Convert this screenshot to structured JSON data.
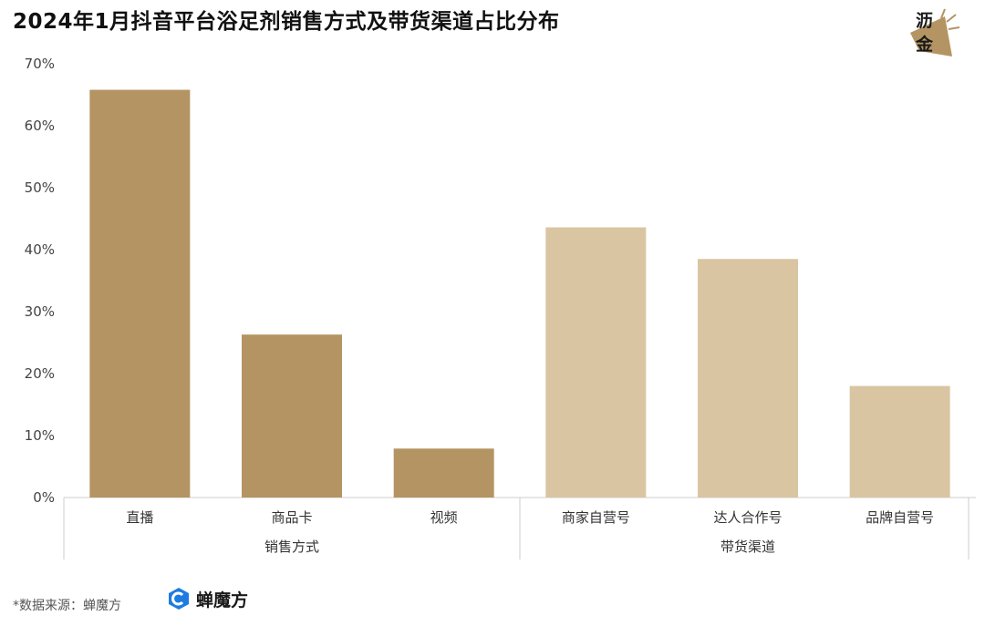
{
  "title": "2024年1月抖音平台浴足剂销售方式及带货渠道占比分布",
  "logo": {
    "line1": "沥",
    "line2": "金"
  },
  "footer": {
    "source": "*数据来源：蝉魔方",
    "brand_name": "蝉魔方"
  },
  "colors": {
    "group1": "#b49462",
    "group2": "#d9c5a2",
    "axis": "#cccccc",
    "brand_blue": "#1e7be0"
  },
  "chart_data": {
    "type": "bar",
    "title": "2024年1月抖音平台浴足剂销售方式及带货渠道占比分布",
    "ylim": [
      0,
      70
    ],
    "yticks": [
      "0%",
      "10%",
      "20%",
      "30%",
      "40%",
      "50%",
      "60%",
      "70%"
    ],
    "categories": [
      "直播",
      "商品卡",
      "视频",
      "商家自营号",
      "达人合作号",
      "品牌自营号"
    ],
    "values": [
      65.8,
      26.3,
      7.9,
      43.6,
      38.5,
      18.0
    ],
    "groups": [
      {
        "label": "销售方式",
        "categories": [
          "直播",
          "商品卡",
          "视频"
        ]
      },
      {
        "label": "带货渠道",
        "categories": [
          "商家自营号",
          "达人合作号",
          "品牌自营号"
        ]
      }
    ],
    "grid": false,
    "legend": "none"
  }
}
